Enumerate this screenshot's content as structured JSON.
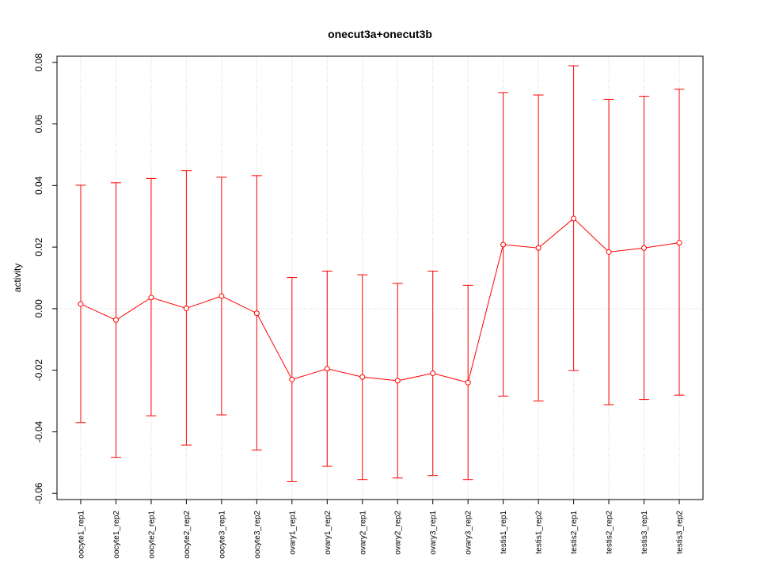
{
  "chart_data": {
    "type": "line",
    "title": "onecut3a+onecut3b",
    "xlabel": "",
    "ylabel": "activity",
    "ylim": [
      -0.062,
      0.082
    ],
    "yticks": [
      -0.06,
      -0.04,
      -0.02,
      0.0,
      0.02,
      0.04,
      0.06,
      0.08
    ],
    "ytick_labels": [
      "-0.06",
      "-0.04",
      "-0.02",
      "0.00",
      "0.02",
      "0.04",
      "0.06",
      "0.08"
    ],
    "grid": true,
    "color": "#ff0000",
    "categories": [
      "oocyte1_rep1",
      "oocyte1_rep2",
      "oocyte2_rep1",
      "oocyte2_rep2",
      "oocyte3_rep1",
      "oocyte3_rep2",
      "ovary1_rep1",
      "ovary1_rep2",
      "ovary2_rep1",
      "ovary2_rep2",
      "ovary3_rep1",
      "ovary3_rep2",
      "testis1_rep1",
      "testis1_rep2",
      "testis2_rep1",
      "testis2_rep2",
      "testis3_rep1",
      "testis3_rep2"
    ],
    "values": [
      0.0015,
      -0.0037,
      0.0036,
      0.0001,
      0.0041,
      -0.0015,
      -0.023,
      -0.0195,
      -0.0222,
      -0.0234,
      -0.021,
      -0.024,
      0.0208,
      0.0197,
      0.0293,
      0.0184,
      0.0197,
      0.0214
    ],
    "upper": [
      0.0401,
      0.0409,
      0.0423,
      0.0448,
      0.0427,
      0.0432,
      0.0101,
      0.0122,
      0.011,
      0.0082,
      0.0122,
      0.0076,
      0.0702,
      0.0694,
      0.0789,
      0.068,
      0.069,
      0.0713
    ],
    "lower": [
      -0.037,
      -0.0483,
      -0.0348,
      -0.0443,
      -0.0345,
      -0.0459,
      -0.0562,
      -0.0512,
      -0.0555,
      -0.055,
      -0.0542,
      -0.0555,
      -0.0284,
      -0.03,
      -0.0201,
      -0.0312,
      -0.0295,
      -0.0281
    ]
  }
}
